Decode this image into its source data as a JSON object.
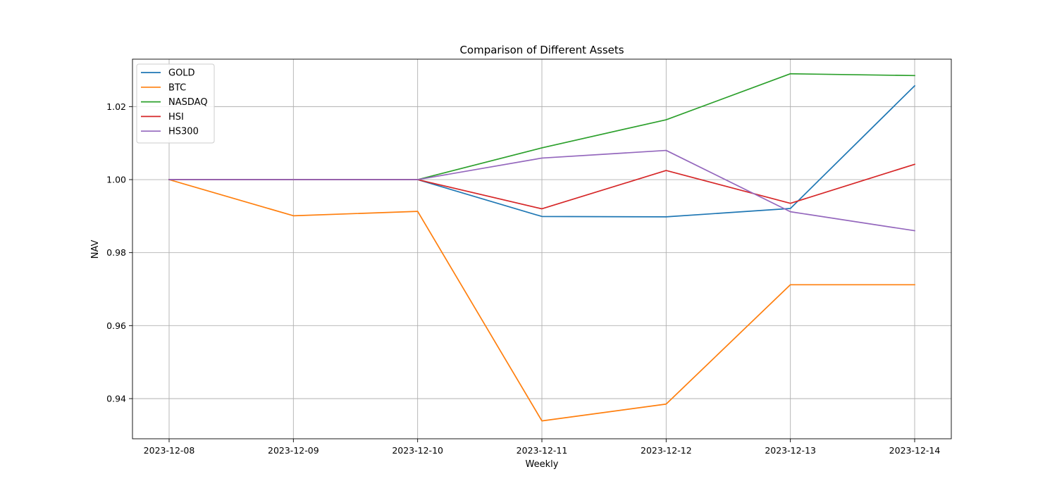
{
  "chart_data": {
    "type": "line",
    "title": "Comparison of Different Assets",
    "xlabel": "Weekly",
    "ylabel": "NAV",
    "x": [
      "2023-12-08",
      "2023-12-09",
      "2023-12-10",
      "2023-12-11",
      "2023-12-12",
      "2023-12-13",
      "2023-12-14"
    ],
    "ylim": [
      0.929,
      1.033
    ],
    "yticks": [
      0.94,
      0.96,
      0.98,
      1.0,
      1.02
    ],
    "ytick_labels": [
      "0.94",
      "0.96",
      "0.98",
      "1.00",
      "1.02"
    ],
    "grid": true,
    "legend_position": "top-left",
    "series": [
      {
        "name": "GOLD",
        "color": "#1f77b4",
        "values": [
          1.0,
          1.0,
          1.0,
          0.9899,
          0.9898,
          0.9921,
          1.0257
        ]
      },
      {
        "name": "BTC",
        "color": "#ff7f0e",
        "values": [
          1.0,
          0.9901,
          0.9913,
          0.9339,
          0.9385,
          0.9712,
          0.9712
        ]
      },
      {
        "name": "NASDAQ",
        "color": "#2ca02c",
        "values": [
          1.0,
          1.0,
          1.0,
          1.0087,
          1.0164,
          1.029,
          1.0285
        ]
      },
      {
        "name": "HSI",
        "color": "#d62728",
        "values": [
          1.0,
          1.0,
          1.0,
          0.992,
          1.0025,
          0.9935,
          1.0042
        ]
      },
      {
        "name": "HS300",
        "color": "#9467bd",
        "values": [
          1.0,
          1.0,
          1.0,
          1.0059,
          1.008,
          0.9912,
          0.986
        ]
      }
    ]
  }
}
